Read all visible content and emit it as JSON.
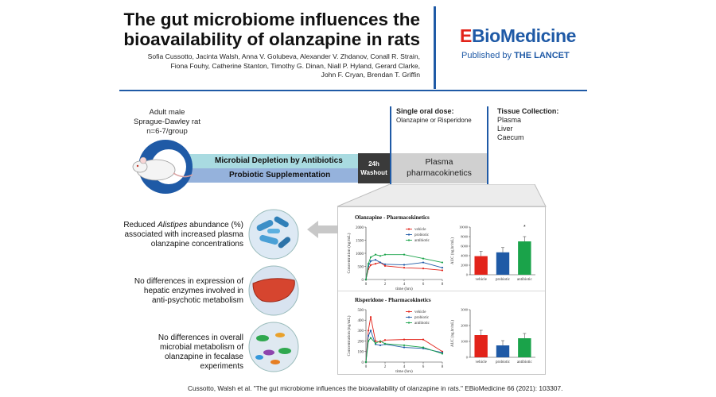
{
  "header": {
    "title_line1": "The gut microbiome influences the",
    "title_line2": "bioavailability of olanzapine in rats",
    "authors_lines": [
      "Sofia Cussotto, Jacinta Walsh, Anna V. Golubeva, Alexander V. Zhdanov, Conall R. Strain,",
      "Fiona Fouhy, Catherine Stanton, Timothy G. Dinan, Niall P. Hyland, Gerard Clarke,",
      "John F. Cryan, Brendan T. Griffin"
    ],
    "journal_e": "E",
    "journal_bio": "Bio",
    "journal_rest": "Medicine",
    "published_by": "Published by",
    "lancet": "THE LANCET"
  },
  "design": {
    "subject_line1": "Adult male",
    "subject_line2": "Sprague-Dawley rat",
    "subject_line3": "n=6-7/group",
    "treatment1": "Microbial Depletion by Antibiotics",
    "treatment2": "Probiotic Supplementation",
    "washout_line1": "24h",
    "washout_line2": "Washout",
    "dose_title": "Single oral dose:",
    "dose_drugs": "Olanzapine or Risperidone",
    "pk_line1": "Plasma",
    "pk_line2": "pharmacokinetics",
    "tissue_title": "Tissue Collection:",
    "tissues": [
      "Plasma",
      "Liver",
      "Caecum"
    ],
    "colors": {
      "antibiotic_band": "#a9dbe1",
      "probiotic_band": "#95b2dc",
      "washout": "#3a3a3a",
      "pk_band": "#d0d0d0",
      "accent_line": "#1f5aa6"
    }
  },
  "findings": {
    "f1_pre": "Reduced ",
    "f1_italic": "Alistipes",
    "f1_post": " abundance (%)",
    "f1_line2": "associated with increased plasma",
    "f1_line3": "olanzapine concentrations",
    "f2": [
      "No differences in expression of",
      "hepatic enzymes involved in",
      "anti-psychotic metabolism"
    ],
    "f3": [
      "No differences in overall",
      "microbial metabolism of",
      "olanzapine in fecalase",
      "experiments"
    ]
  },
  "chart_data": [
    {
      "type": "line",
      "title": "Olanzapine - Pharmacokinetics",
      "xlabel": "time (hrs)",
      "ylabel": "Concentration (ng/mL)",
      "x_ticks": [
        "0",
        "2",
        "4",
        "6",
        "8"
      ],
      "y_ticks": [
        "0",
        "500",
        "1000",
        "1500",
        "2000"
      ],
      "xlim": [
        0,
        8
      ],
      "ylim": [
        0,
        2000
      ],
      "legend_position": "top-right",
      "series": [
        {
          "name": "vehicle",
          "color": "#e2231a",
          "x": [
            0,
            0.25,
            0.5,
            1,
            1.5,
            2,
            4,
            6,
            8
          ],
          "y": [
            0,
            400,
            550,
            600,
            650,
            520,
            450,
            420,
            350
          ]
        },
        {
          "name": "probiotic",
          "color": "#1f5aa6",
          "x": [
            0,
            0.25,
            0.5,
            1,
            1.5,
            2,
            4,
            6,
            8
          ],
          "y": [
            0,
            500,
            700,
            750,
            650,
            580,
            560,
            650,
            450
          ]
        },
        {
          "name": "antibiotic",
          "color": "#1aa34a",
          "x": [
            0,
            0.25,
            0.5,
            1,
            1.5,
            2,
            4,
            6,
            8
          ],
          "y": [
            0,
            600,
            850,
            950,
            900,
            950,
            950,
            800,
            650
          ]
        }
      ]
    },
    {
      "type": "bar",
      "ylabel": "AUC (ng.hr/mL)",
      "categories": [
        "vehicle",
        "probiotic",
        "antibiotic"
      ],
      "values": [
        3900,
        4700,
        7000
      ],
      "colors": [
        "#e2231a",
        "#1f5aa6",
        "#1aa34a"
      ],
      "y_ticks": [
        "0",
        "2000",
        "4000",
        "6000",
        "8000",
        "10000"
      ],
      "ylim": [
        0,
        10000
      ],
      "annotation": "*"
    },
    {
      "type": "line",
      "title": "Risperidone - Pharmacokinetics",
      "xlabel": "time (hrs)",
      "ylabel": "Concentration (ng/mL)",
      "x_ticks": [
        "0",
        "2",
        "4",
        "6",
        "8"
      ],
      "y_ticks": [
        "0",
        "100",
        "200",
        "300",
        "400",
        "500"
      ],
      "xlim": [
        0,
        8
      ],
      "ylim": [
        0,
        500
      ],
      "legend_position": "top-right",
      "series": [
        {
          "name": "vehicle",
          "color": "#e2231a",
          "x": [
            0,
            0.25,
            0.5,
            1,
            1.5,
            2,
            4,
            6,
            8
          ],
          "y": [
            0,
            300,
            430,
            200,
            190,
            210,
            215,
            215,
            100
          ]
        },
        {
          "name": "probiotic",
          "color": "#1f5aa6",
          "x": [
            0,
            0.25,
            0.5,
            1,
            1.5,
            2,
            4,
            6,
            8
          ],
          "y": [
            0,
            250,
            300,
            170,
            160,
            170,
            140,
            130,
            90
          ]
        },
        {
          "name": "antibiotic",
          "color": "#1aa34a",
          "x": [
            0,
            0.25,
            0.5,
            1,
            1.5,
            2,
            4,
            6,
            8
          ],
          "y": [
            0,
            200,
            230,
            180,
            200,
            175,
            160,
            140,
            80
          ]
        }
      ]
    },
    {
      "type": "bar",
      "ylabel": "AUC (ng.hr/mL)",
      "categories": [
        "vehicle",
        "probiotic",
        "antibiotic"
      ],
      "values": [
        1400,
        750,
        1200
      ],
      "colors": [
        "#e2231a",
        "#1f5aa6",
        "#1aa34a"
      ],
      "y_ticks": [
        "0",
        "1000",
        "2000",
        "3000"
      ],
      "ylim": [
        0,
        3000
      ]
    }
  ],
  "citation": "Cussotto, Walsh et al. \"The gut microbiome influences the bioavailability of olanzapine in rats.\" EBioMedicine 66 (2021): 103307."
}
